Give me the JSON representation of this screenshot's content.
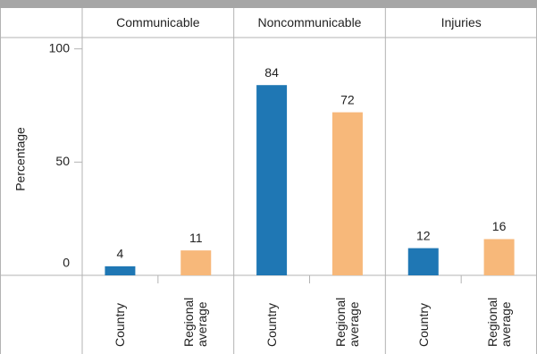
{
  "chart_data": {
    "type": "bar",
    "facets": [
      "Communicable",
      "Noncommunicable",
      "Injuries"
    ],
    "y_label": "Percentage",
    "series": [
      {
        "name": "Country",
        "color": "#1f77b4",
        "values": [
          4,
          84,
          12
        ]
      },
      {
        "name": "Regional average",
        "color": "#f7b87a",
        "values": [
          11,
          72,
          16
        ]
      }
    ],
    "ylim": [
      0,
      105
    ],
    "yticks": [
      0,
      50,
      100
    ]
  }
}
